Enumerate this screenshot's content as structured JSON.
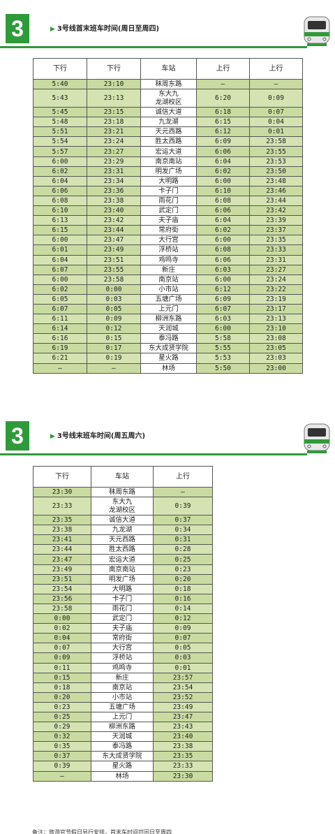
{
  "section1": {
    "number": "3",
    "title": "3号线首末班车时间(周日至周四)",
    "headers": [
      "下行",
      "下行",
      "车站",
      "上行",
      "上行"
    ],
    "rows": [
      [
        "5:40",
        "23:10",
        "秣周东路",
        "—",
        "—"
      ],
      [
        "5:43",
        "23:13",
        "东大九\n龙湖校区",
        "6:20",
        "0:09"
      ],
      [
        "5:45",
        "23:15",
        "诚信大道",
        "6:18",
        "0:07"
      ],
      [
        "5:48",
        "23:18",
        "九龙湖",
        "6:15",
        "0:04"
      ],
      [
        "5:51",
        "23:21",
        "天元西路",
        "6:12",
        "0:01"
      ],
      [
        "5:54",
        "23:24",
        "胜太西路",
        "6:09",
        "23:58"
      ],
      [
        "5:57",
        "23:27",
        "宏运大道",
        "6:06",
        "23:55"
      ],
      [
        "6:00",
        "23:29",
        "南京南站",
        "6:04",
        "23:53"
      ],
      [
        "6:02",
        "23:31",
        "明发广场",
        "6:02",
        "23:50"
      ],
      [
        "6:04",
        "23:34",
        "大明路",
        "6:00",
        "23:48"
      ],
      [
        "6:06",
        "23:36",
        "卡子门",
        "6:10",
        "23:46"
      ],
      [
        "6:08",
        "23:38",
        "雨花门",
        "6:08",
        "23:44"
      ],
      [
        "6:10",
        "23:40",
        "武定门",
        "6:06",
        "23:42"
      ],
      [
        "6:13",
        "23:42",
        "夫子庙",
        "6:04",
        "23:39"
      ],
      [
        "6:15",
        "23:44",
        "常府街",
        "6:02",
        "23:37"
      ],
      [
        "6:00",
        "23:47",
        "大行宫",
        "6:00",
        "23:35"
      ],
      [
        "6:01",
        "23:49",
        "浮桥站",
        "6:08",
        "23:33"
      ],
      [
        "6:04",
        "23:51",
        "鸡鸣寺",
        "6:06",
        "23:31"
      ],
      [
        "6:07",
        "23:55",
        "新庄",
        "6:03",
        "23:27"
      ],
      [
        "6:00",
        "23:58",
        "南京站",
        "6:00",
        "23:24"
      ],
      [
        "6:02",
        "0:00",
        "小市站",
        "6:12",
        "23:22"
      ],
      [
        "6:05",
        "0:03",
        "五塘广场",
        "6:09",
        "23:19"
      ],
      [
        "6:07",
        "0:05",
        "上元门",
        "6:07",
        "23:17"
      ],
      [
        "6:11",
        "0:09",
        "柳洲东路",
        "6:03",
        "23:13"
      ],
      [
        "6:14",
        "0:12",
        "天润城",
        "6:00",
        "23:10"
      ],
      [
        "6:16",
        "0:15",
        "泰冯路",
        "5:58",
        "23:08"
      ],
      [
        "6:19",
        "0:17",
        "东大成贤学院",
        "5:55",
        "23:05"
      ],
      [
        "6:21",
        "0:19",
        "星火路",
        "5:53",
        "23:03"
      ],
      [
        "—",
        "—",
        "林场",
        "5:50",
        "23:00"
      ]
    ]
  },
  "section2": {
    "number": "3",
    "title": "3号线末班车时间(周五周六)",
    "headers": [
      "下行",
      "车站",
      "上行"
    ],
    "rows": [
      [
        "23:30",
        "秣周东路",
        "—"
      ],
      [
        "23:33",
        "东大九\n龙湖校区",
        "0:39"
      ],
      [
        "23:35",
        "诚信大道",
        "0:37"
      ],
      [
        "23:38",
        "九龙湖",
        "0:34"
      ],
      [
        "23:41",
        "天元西路",
        "0:31"
      ],
      [
        "23:44",
        "胜太西路",
        "0:28"
      ],
      [
        "23:47",
        "宏运大道",
        "0:25"
      ],
      [
        "23:49",
        "南京南站",
        "0:23"
      ],
      [
        "23:51",
        "明发广场",
        "0:20"
      ],
      [
        "23:54",
        "大明路",
        "0:18"
      ],
      [
        "23:56",
        "卡子门",
        "0:16"
      ],
      [
        "23:58",
        "雨花门",
        "0:14"
      ],
      [
        "0:00",
        "武定门",
        "0:12"
      ],
      [
        "0:02",
        "夫子庙",
        "0:09"
      ],
      [
        "0:04",
        "常府街",
        "0:07"
      ],
      [
        "0:07",
        "大行宫",
        "0:05"
      ],
      [
        "0:09",
        "浮桥站",
        "0:03"
      ],
      [
        "0:11",
        "鸡鸣寺",
        "0:01"
      ],
      [
        "0:15",
        "新庄",
        "23:57"
      ],
      [
        "0:18",
        "南京站",
        "23:54"
      ],
      [
        "0:20",
        "小市站",
        "23:52"
      ],
      [
        "0:23",
        "五塘广场",
        "23:49"
      ],
      [
        "0:25",
        "上元门",
        "23:47"
      ],
      [
        "0:29",
        "柳洲东路",
        "23:43"
      ],
      [
        "0:32",
        "天润城",
        "23:40"
      ],
      [
        "0:35",
        "泰冯路",
        "23:38"
      ],
      [
        "0:37",
        "东大成贤学院",
        "23:35"
      ],
      [
        "0:39",
        "星火路",
        "23:33"
      ],
      [
        "—",
        "林场",
        "23:30"
      ]
    ]
  },
  "footnote": "备注：旅游官节假日另行安排，首末车时间可因日至周四",
  "colors": {
    "accent": "#2f9a3a",
    "row_fill": "#d4e3b1"
  },
  "icons": {
    "train": "metro-train-icon",
    "arrow": "triangle-right-icon"
  }
}
